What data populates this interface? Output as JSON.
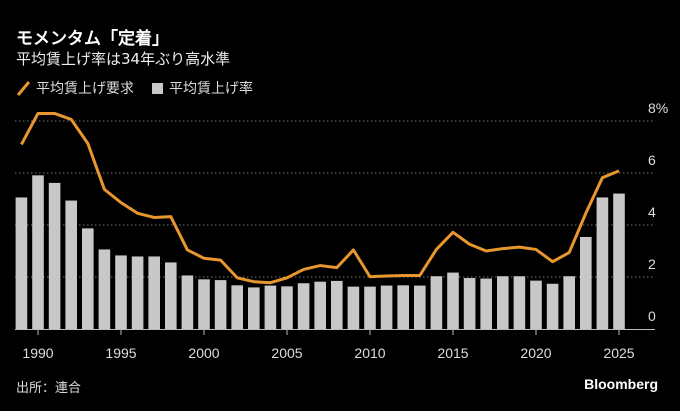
{
  "title": "モメンタム「定着」",
  "subtitle": "平均賃上げ率は34年ぶり高水準",
  "source": "出所：連合",
  "brand": "Bloomberg",
  "chart_data": {
    "type": "bar+line",
    "x": [
      1989,
      1990,
      1991,
      1992,
      1993,
      1994,
      1995,
      1996,
      1997,
      1998,
      1999,
      2000,
      2001,
      2002,
      2003,
      2004,
      2005,
      2006,
      2007,
      2008,
      2009,
      2010,
      2011,
      2012,
      2013,
      2014,
      2015,
      2016,
      2017,
      2018,
      2019,
      2020,
      2021,
      2022,
      2023,
      2024,
      2025
    ],
    "series": [
      {
        "name": "平均賃上げ要求",
        "kind": "line",
        "color": "#e8962e",
        "values": [
          7.1,
          8.29,
          8.29,
          8.06,
          7.14,
          5.37,
          4.86,
          4.45,
          4.29,
          4.32,
          3.04,
          2.72,
          2.65,
          1.97,
          1.82,
          1.78,
          1.97,
          2.29,
          2.44,
          2.36,
          3.04,
          2.01,
          2.04,
          2.06,
          2.06,
          3.06,
          3.72,
          3.26,
          3.0,
          3.09,
          3.15,
          3.06,
          2.59,
          2.94,
          4.45,
          5.82,
          6.08
        ]
      },
      {
        "name": "平均賃上げ率",
        "kind": "bar",
        "color": "#c8c8c8",
        "values": [
          5.06,
          5.91,
          5.62,
          4.94,
          3.87,
          3.06,
          2.83,
          2.79,
          2.79,
          2.56,
          2.06,
          1.91,
          1.88,
          1.68,
          1.6,
          1.67,
          1.64,
          1.76,
          1.82,
          1.85,
          1.63,
          1.63,
          1.67,
          1.68,
          1.67,
          2.03,
          2.17,
          1.96,
          1.94,
          2.03,
          2.03,
          1.86,
          1.74,
          2.03,
          3.54,
          5.06,
          5.21
        ]
      }
    ],
    "x_ticks": [
      "1990",
      "1995",
      "2000",
      "2005",
      "2010",
      "2015",
      "2020",
      "2025"
    ],
    "y_ticks": [
      "0",
      "2",
      "4",
      "6",
      "8%"
    ],
    "ylim": [
      0,
      8
    ],
    "grid": "horizontal dotted",
    "legend_placement": "top-left"
  }
}
